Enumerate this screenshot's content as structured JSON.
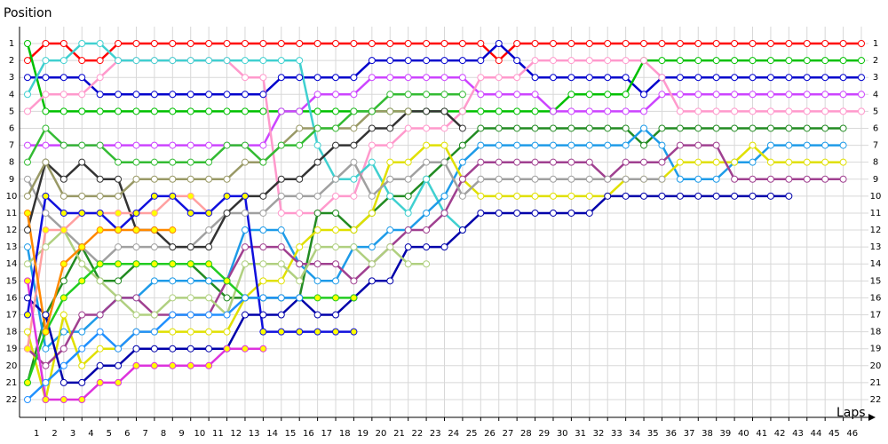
{
  "chart_data": {
    "type": "line",
    "xlabel": "Laps",
    "ylabel": "Position",
    "x": [
      0,
      1,
      2,
      3,
      4,
      5,
      6,
      7,
      8,
      9,
      10,
      11,
      12,
      13,
      14,
      15,
      16,
      17,
      18,
      19,
      20,
      21,
      22,
      23,
      24,
      25,
      26,
      27,
      28,
      29,
      30,
      31,
      32,
      33,
      34,
      35,
      36,
      37,
      38,
      39,
      40,
      41,
      42,
      43,
      44,
      45,
      46
    ],
    "xlim": [
      0,
      46
    ],
    "xticks": [
      1,
      2,
      3,
      4,
      5,
      6,
      7,
      8,
      9,
      10,
      11,
      12,
      13,
      14,
      15,
      16,
      17,
      18,
      19,
      20,
      21,
      22,
      23,
      24,
      25,
      26,
      27,
      28,
      29,
      30,
      31,
      32,
      33,
      34,
      35,
      36,
      37,
      38,
      39,
      40,
      41,
      42,
      43,
      44,
      45,
      46
    ],
    "ylim": [
      1,
      22
    ],
    "yaxis_reversed": true,
    "grid": true,
    "yticks": [
      1,
      2,
      3,
      4,
      5,
      6,
      7,
      8,
      9,
      10,
      11,
      12,
      13,
      14,
      15,
      16,
      17,
      18,
      19,
      20,
      21,
      22
    ],
    "series": [
      {
        "color": "#ff0000",
        "values": [
          2,
          1,
          1,
          2,
          2,
          1,
          1,
          1,
          1,
          1,
          1,
          1,
          1,
          1,
          1,
          1,
          1,
          1,
          1,
          1,
          1,
          1,
          1,
          1,
          1,
          1,
          2,
          1,
          1,
          1,
          1,
          1,
          1,
          1,
          1,
          1,
          1,
          1,
          1,
          1,
          1,
          1,
          1,
          1,
          1,
          1,
          1
        ]
      },
      {
        "color": "#0000cc",
        "values": [
          3,
          3,
          3,
          3,
          4,
          4,
          4,
          4,
          4,
          4,
          4,
          4,
          4,
          4,
          3,
          3,
          3,
          3,
          3,
          2,
          2,
          2,
          2,
          2,
          2,
          2,
          1,
          2,
          3,
          3,
          3,
          3,
          3,
          3,
          4,
          3,
          3,
          3,
          3,
          3,
          3,
          3,
          3,
          3,
          3,
          3,
          3
        ]
      },
      {
        "color": "#00c000",
        "values": [
          1,
          5,
          5,
          5,
          5,
          5,
          5,
          5,
          5,
          5,
          5,
          5,
          5,
          5,
          5,
          5,
          5,
          5,
          5,
          5,
          5,
          5,
          5,
          5,
          5,
          5,
          5,
          5,
          5,
          5,
          4,
          4,
          4,
          4,
          2,
          2,
          2,
          2,
          2,
          2,
          2,
          2,
          2,
          2,
          2,
          2,
          2
        ]
      },
      {
        "color": "#cc44ff",
        "values": [
          7,
          7,
          7,
          7,
          7,
          7,
          7,
          7,
          7,
          7,
          7,
          7,
          7,
          7,
          5,
          5,
          4,
          4,
          4,
          3,
          3,
          3,
          3,
          3,
          3,
          4,
          4,
          4,
          4,
          5,
          5,
          5,
          5,
          5,
          5,
          4,
          4,
          4,
          4,
          4,
          4,
          4,
          4,
          4,
          4,
          4,
          4
        ]
      },
      {
        "color": "#ff99cc",
        "values": [
          5,
          4,
          4,
          4,
          3,
          2,
          2,
          2,
          2,
          2,
          2,
          2,
          3,
          3,
          11,
          11,
          11,
          10,
          10,
          7,
          7,
          6,
          6,
          6,
          5,
          3,
          3,
          3,
          2,
          2,
          2,
          2,
          2,
          2,
          2,
          3,
          5,
          5,
          5,
          5,
          5,
          5,
          5,
          5,
          5,
          5,
          5
        ]
      },
      {
        "color": "#228b22",
        "values": [
          21,
          17,
          15,
          13,
          15,
          15,
          14,
          14,
          14,
          14,
          15,
          16,
          16,
          16,
          16,
          16,
          11,
          11,
          12,
          11,
          10,
          10,
          9,
          8,
          7,
          6,
          6,
          6,
          6,
          6,
          6,
          6,
          6,
          6,
          7,
          6,
          6,
          6,
          6,
          6,
          6,
          6,
          6,
          6,
          6,
          6,
          null
        ]
      },
      {
        "color": "#40d0d0",
        "values": [
          4,
          2,
          2,
          1,
          1,
          2,
          2,
          2,
          2,
          2,
          2,
          2,
          2,
          2,
          2,
          2,
          7,
          9,
          9,
          8,
          10,
          11,
          9,
          11,
          12,
          null,
          null,
          null,
          null,
          null,
          null,
          null,
          null,
          null,
          null,
          null,
          null,
          null,
          null,
          null,
          null,
          null,
          null,
          null,
          null,
          null,
          null
        ]
      },
      {
        "color": "#1e9be8",
        "values": [
          13,
          19,
          18,
          18,
          17,
          16,
          16,
          15,
          15,
          15,
          15,
          15,
          12,
          12,
          12,
          14,
          15,
          15,
          13,
          13,
          12,
          12,
          11,
          10,
          8,
          7,
          7,
          7,
          7,
          7,
          7,
          7,
          7,
          7,
          6,
          7,
          9,
          9,
          9,
          8,
          8,
          7,
          7,
          7,
          7,
          7,
          null
        ]
      },
      {
        "color": "#e0e000",
        "values": [
          18,
          22,
          17,
          20,
          19,
          19,
          18,
          18,
          18,
          18,
          18,
          18,
          16,
          15,
          15,
          13,
          12,
          12,
          12,
          11,
          8,
          8,
          7,
          7,
          9,
          10,
          10,
          10,
          10,
          10,
          10,
          10,
          10,
          9,
          9,
          9,
          8,
          8,
          8,
          8,
          7,
          8,
          8,
          8,
          8,
          8,
          null
        ]
      },
      {
        "color": "#a04090",
        "values": [
          19,
          20,
          19,
          17,
          17,
          16,
          16,
          17,
          17,
          17,
          17,
          15,
          13,
          13,
          13,
          14,
          14,
          14,
          15,
          14,
          13,
          12,
          12,
          11,
          9,
          8,
          8,
          8,
          8,
          8,
          8,
          8,
          9,
          8,
          8,
          8,
          7,
          7,
          7,
          9,
          9,
          9,
          9,
          9,
          9,
          9,
          null
        ]
      },
      {
        "color": "#0000aa",
        "values": [
          16,
          17,
          21,
          21,
          20,
          20,
          19,
          19,
          19,
          19,
          19,
          19,
          17,
          17,
          17,
          16,
          17,
          17,
          16,
          15,
          15,
          13,
          13,
          13,
          12,
          11,
          11,
          11,
          11,
          11,
          11,
          11,
          10,
          10,
          10,
          10,
          10,
          10,
          10,
          10,
          10,
          10,
          10,
          null,
          null,
          null,
          null
        ]
      },
      {
        "color": "#a0a0a0",
        "values": [
          9,
          11,
          12,
          13,
          14,
          13,
          13,
          13,
          13,
          13,
          12,
          11,
          11,
          11,
          10,
          10,
          10,
          9,
          8,
          10,
          9,
          9,
          8,
          8,
          10,
          9,
          9,
          9,
          9,
          9,
          9,
          9,
          9,
          9,
          9,
          9,
          null,
          null,
          null,
          null,
          null,
          null,
          null,
          null,
          null,
          null,
          null
        ]
      },
      {
        "color": "#333333",
        "values": [
          12,
          8,
          9,
          8,
          9,
          9,
          12,
          12,
          13,
          13,
          13,
          11,
          10,
          10,
          9,
          9,
          8,
          7,
          7,
          6,
          6,
          5,
          5,
          5,
          6,
          null,
          null,
          null,
          null,
          null,
          null,
          null,
          null,
          null,
          null,
          null,
          null,
          null,
          null,
          null,
          null,
          null,
          null,
          null,
          null,
          null,
          null
        ]
      },
      {
        "color": "#999966",
        "values": [
          10,
          8,
          10,
          10,
          10,
          10,
          9,
          9,
          9,
          9,
          9,
          9,
          8,
          8,
          7,
          6,
          6,
          6,
          6,
          5,
          5,
          5,
          null,
          null,
          null,
          null,
          null,
          null,
          null,
          null,
          null,
          null,
          null,
          null,
          null,
          null,
          null,
          null,
          null,
          null,
          null,
          null,
          null,
          null,
          null,
          null,
          null
        ]
      },
      {
        "color": "#b0d080",
        "values": [
          14,
          13,
          12,
          14,
          15,
          16,
          17,
          17,
          16,
          16,
          16,
          17,
          14,
          14,
          14,
          15,
          13,
          13,
          13,
          14,
          13,
          14,
          14,
          null,
          null,
          null,
          null,
          null,
          null,
          null,
          null,
          null,
          null,
          null,
          null,
          null,
          null,
          null,
          null,
          null,
          null,
          null,
          null,
          null,
          null,
          null,
          null
        ]
      },
      {
        "color": "#22cc22",
        "marker_color": "#ffff00",
        "values": [
          21,
          18,
          16,
          15,
          14,
          14,
          14,
          14,
          14,
          14,
          14,
          15,
          16,
          16,
          16,
          16,
          16,
          16,
          16,
          null,
          null,
          null,
          null,
          null,
          null,
          null,
          null,
          null,
          null,
          null,
          null,
          null,
          null,
          null,
          null,
          null,
          null,
          null,
          null,
          null,
          null,
          null,
          null,
          null,
          null,
          null,
          null
        ]
      },
      {
        "color": "#33bb33",
        "values": [
          8,
          6,
          7,
          7,
          7,
          8,
          8,
          8,
          8,
          8,
          8,
          7,
          7,
          8,
          7,
          7,
          6,
          6,
          5,
          5,
          4,
          4,
          4,
          4,
          4,
          null,
          null,
          null,
          null,
          null,
          null,
          null,
          null,
          null,
          null,
          null,
          null,
          null,
          null,
          null,
          null,
          null,
          null,
          null,
          null,
          null,
          null
        ]
      },
      {
        "color": "#ffa0a0",
        "marker_color": "#ffff00",
        "values": [
          19,
          12,
          12,
          11,
          11,
          11,
          11,
          11,
          10,
          10,
          11,
          null,
          null,
          null,
          null,
          null,
          null,
          null,
          null,
          null,
          null,
          null,
          null,
          null,
          null,
          null,
          null,
          null,
          null,
          null,
          null,
          null,
          null,
          null,
          null,
          null,
          null,
          null,
          null,
          null,
          null,
          null,
          null,
          null,
          null,
          null,
          null
        ]
      },
      {
        "color": "#dd33dd",
        "marker_color": "#ffff00",
        "values": [
          15,
          22,
          22,
          22,
          21,
          21,
          20,
          20,
          20,
          20,
          20,
          19,
          19,
          19,
          null,
          null,
          null,
          null,
          null,
          null,
          null,
          null,
          null,
          null,
          null,
          null,
          null,
          null,
          null,
          null,
          null,
          null,
          null,
          null,
          null,
          null,
          null,
          null,
          null,
          null,
          null,
          null,
          null,
          null,
          null,
          null,
          null
        ]
      },
      {
        "color": "#1010dd",
        "marker_color": "#ffff00",
        "values": [
          17,
          10,
          11,
          11,
          11,
          12,
          11,
          10,
          10,
          11,
          11,
          10,
          10,
          18,
          18,
          18,
          18,
          18,
          18,
          null,
          null,
          null,
          null,
          null,
          null,
          null,
          null,
          null,
          null,
          null,
          null,
          null,
          null,
          null,
          null,
          null,
          null,
          null,
          null,
          null,
          null,
          null,
          null,
          null,
          null,
          null,
          null
        ]
      },
      {
        "color": "#2090ff",
        "values": [
          22,
          21,
          20,
          19,
          18,
          19,
          18,
          18,
          17,
          17,
          17,
          17,
          16,
          16,
          16,
          16,
          null,
          null,
          null,
          null,
          null,
          null,
          null,
          null,
          null,
          null,
          null,
          null,
          null,
          null,
          null,
          null,
          null,
          null,
          null,
          null,
          null,
          null,
          null,
          null,
          null,
          null,
          null,
          null,
          null,
          null,
          null
        ]
      },
      {
        "color": "#ff8800",
        "marker_color": "#ffff00",
        "values": [
          11,
          18,
          14,
          13,
          12,
          12,
          12,
          12,
          12,
          null,
          null,
          null,
          null,
          null,
          null,
          null,
          null,
          null,
          null,
          null,
          null,
          null,
          null,
          null,
          null,
          null,
          null,
          null,
          null,
          null,
          null,
          null,
          null,
          null,
          null,
          null,
          null,
          null,
          null,
          null,
          null,
          null,
          null,
          null,
          null,
          null,
          null
        ]
      }
    ]
  }
}
